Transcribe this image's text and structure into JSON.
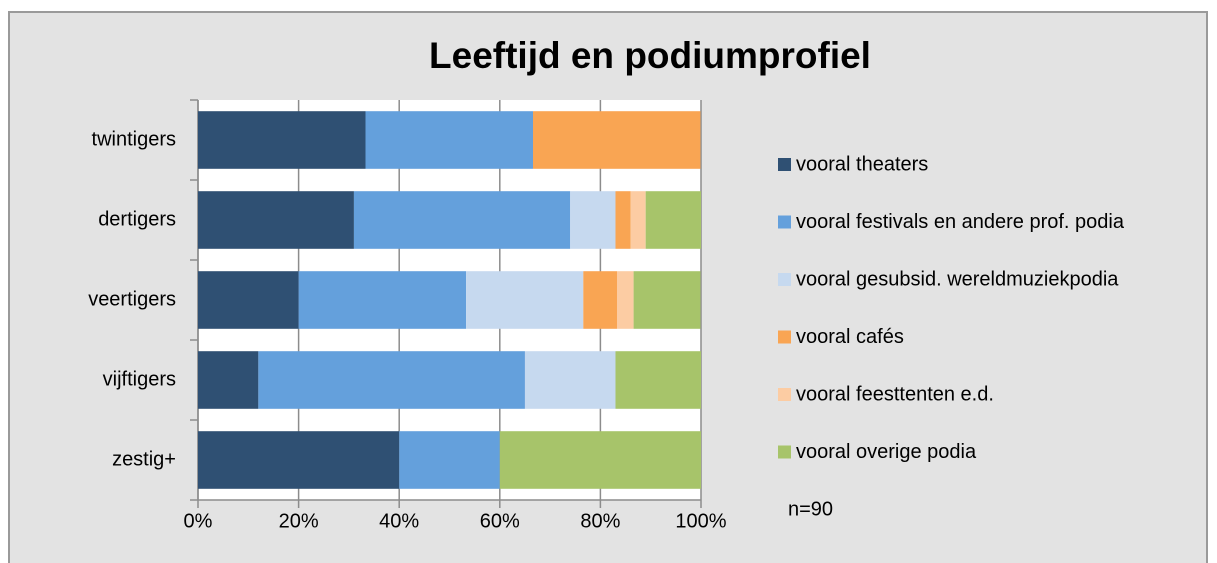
{
  "chart_data": {
    "type": "stacked-barh",
    "title": "Leeftijd en podiumprofiel",
    "categories": [
      "twintigers",
      "dertigers",
      "veertigers",
      "vijftigers",
      "zestig+"
    ],
    "series": [
      {
        "name": "vooral theaters",
        "color": "#2f5073",
        "values": [
          33.3,
          31,
          20,
          12,
          40
        ]
      },
      {
        "name": "vooral festivals en andere prof. podia",
        "color": "#64a0dc",
        "values": [
          33.3,
          43,
          33.3,
          53,
          20
        ]
      },
      {
        "name": "vooral gesubsid. wereldmuziekpodia",
        "color": "#c6d9ef",
        "values": [
          0,
          9,
          23.3,
          18,
          0
        ]
      },
      {
        "name": "vooral cafés",
        "color": "#f9a553",
        "values": [
          33.3,
          3,
          6.7,
          0,
          0
        ]
      },
      {
        "name": "vooral feesttenten e.d.",
        "color": "#fccca3",
        "values": [
          0,
          3,
          3.3,
          0,
          0
        ]
      },
      {
        "name": "vooral overige podia",
        "color": "#a7c46a",
        "values": [
          0,
          11,
          13.3,
          17,
          40
        ]
      }
    ],
    "xlim": [
      0,
      100
    ],
    "xticks": [
      {
        "value": 0,
        "label": "0%"
      },
      {
        "value": 20,
        "label": "20%"
      },
      {
        "value": 40,
        "label": "40%"
      },
      {
        "value": 60,
        "label": "60%"
      },
      {
        "value": 80,
        "label": "80%"
      },
      {
        "value": 100,
        "label": "100%"
      }
    ],
    "grid": true,
    "legend": "right",
    "annotation": "n=90"
  }
}
